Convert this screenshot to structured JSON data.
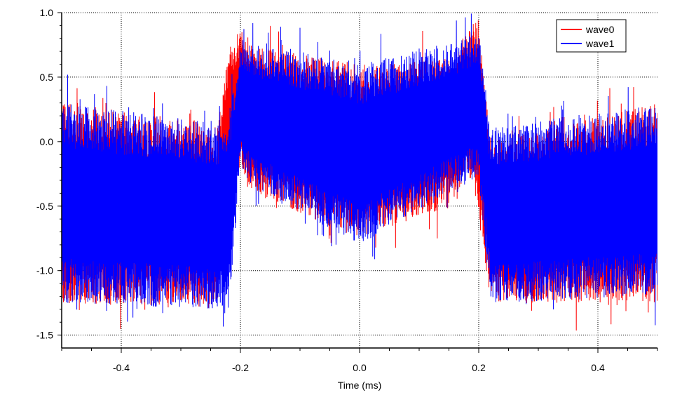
{
  "chart_data": {
    "type": "line",
    "title": "",
    "xlabel": "Time (ms)",
    "ylabel": "",
    "xlim": [
      -0.5,
      0.5
    ],
    "ylim": [
      -1.6,
      1.0
    ],
    "x_ticks": [
      -0.4,
      -0.2,
      0.0,
      0.2,
      0.4
    ],
    "x_tick_labels": [
      "-0.4",
      "-0.2",
      "0.0",
      "0.2",
      "0.4"
    ],
    "y_ticks": [
      -1.5,
      -1.0,
      -0.5,
      0.0,
      0.5,
      1.0
    ],
    "y_tick_labels": [
      "-1.5",
      "-1.0",
      "-0.5",
      "0.0",
      "0.5",
      "1.0"
    ],
    "grid": true,
    "grid_style": "dotted",
    "legend_position": "top-right",
    "series": [
      {
        "name": "wave0",
        "color": "#ff0000",
        "envelope": {
          "x": [
            -0.5,
            -0.25,
            -0.24,
            -0.22,
            -0.2,
            -0.18,
            0.0,
            0.16,
            0.18,
            0.2,
            0.22,
            0.5
          ],
          "upper": [
            0.3,
            0.15,
            0.1,
            0.65,
            0.95,
            0.75,
            0.6,
            0.65,
            0.9,
            0.95,
            0.0,
            0.3
          ],
          "lower": [
            -1.25,
            -1.3,
            -1.35,
            -0.4,
            -0.2,
            -0.4,
            -0.75,
            -0.5,
            -0.2,
            -0.55,
            -1.25,
            -1.25
          ]
        }
      },
      {
        "name": "wave1",
        "color": "#0000ff",
        "envelope": {
          "x": [
            -0.5,
            -0.25,
            -0.22,
            -0.2,
            -0.18,
            0.0,
            0.18,
            0.2,
            0.22,
            0.5
          ],
          "upper": [
            0.3,
            0.15,
            0.15,
            0.8,
            0.75,
            0.6,
            0.8,
            0.85,
            0.1,
            0.3
          ],
          "lower": [
            -1.25,
            -1.3,
            -1.35,
            -0.2,
            -0.35,
            -0.8,
            -0.3,
            -0.3,
            -1.25,
            -1.2
          ]
        }
      }
    ]
  }
}
